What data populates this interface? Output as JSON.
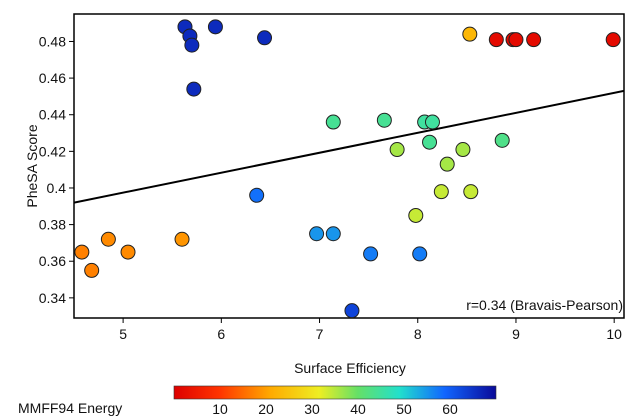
{
  "chart_data": {
    "type": "scatter",
    "xlabel": "Surface Efficiency",
    "ylabel": "PheSA Score",
    "xlim": [
      4.5,
      10.1
    ],
    "ylim": [
      0.329,
      0.495
    ],
    "xticks": [
      "5",
      "6",
      "7",
      "8",
      "9",
      "10"
    ],
    "yticks": [
      "0.34",
      "0.36",
      "0.38",
      "0.4",
      "0.42",
      "0.44",
      "0.46",
      "0.48"
    ],
    "annotation": "r=0.34 (Bravais-Pearson)",
    "trendline": {
      "x": [
        4.5,
        10.1
      ],
      "y": [
        0.392,
        0.453
      ]
    },
    "grid": false,
    "colorbar": {
      "label": "MMFF94 Energy",
      "ticks": [
        "10",
        "20",
        "30",
        "40",
        "50",
        "60"
      ],
      "range": [
        0,
        70
      ],
      "colormap": "jet-reversed (red low, blue high)"
    },
    "points": [
      {
        "x": 4.58,
        "y": 0.365,
        "energy": 17
      },
      {
        "x": 4.68,
        "y": 0.355,
        "energy": 17
      },
      {
        "x": 4.85,
        "y": 0.372,
        "energy": 18
      },
      {
        "x": 5.05,
        "y": 0.365,
        "energy": 18
      },
      {
        "x": 5.6,
        "y": 0.372,
        "energy": 19
      },
      {
        "x": 5.63,
        "y": 0.488,
        "energy": 66
      },
      {
        "x": 5.68,
        "y": 0.483,
        "energy": 66
      },
      {
        "x": 5.7,
        "y": 0.478,
        "energy": 66
      },
      {
        "x": 5.72,
        "y": 0.454,
        "energy": 66
      },
      {
        "x": 5.94,
        "y": 0.488,
        "energy": 66
      },
      {
        "x": 6.44,
        "y": 0.482,
        "energy": 66
      },
      {
        "x": 6.36,
        "y": 0.396,
        "energy": 58
      },
      {
        "x": 6.97,
        "y": 0.375,
        "energy": 55
      },
      {
        "x": 7.14,
        "y": 0.375,
        "energy": 55
      },
      {
        "x": 7.14,
        "y": 0.436,
        "energy": 44
      },
      {
        "x": 7.33,
        "y": 0.333,
        "energy": 63
      },
      {
        "x": 7.52,
        "y": 0.364,
        "energy": 57
      },
      {
        "x": 7.66,
        "y": 0.437,
        "energy": 44
      },
      {
        "x": 7.79,
        "y": 0.421,
        "energy": 36
      },
      {
        "x": 7.98,
        "y": 0.385,
        "energy": 34
      },
      {
        "x": 8.02,
        "y": 0.364,
        "energy": 57
      },
      {
        "x": 8.07,
        "y": 0.436,
        "energy": 45
      },
      {
        "x": 8.12,
        "y": 0.425,
        "energy": 44
      },
      {
        "x": 8.15,
        "y": 0.436,
        "energy": 45
      },
      {
        "x": 8.24,
        "y": 0.398,
        "energy": 34
      },
      {
        "x": 8.3,
        "y": 0.413,
        "energy": 36
      },
      {
        "x": 8.46,
        "y": 0.421,
        "energy": 36
      },
      {
        "x": 8.54,
        "y": 0.398,
        "energy": 34
      },
      {
        "x": 8.53,
        "y": 0.484,
        "energy": 23
      },
      {
        "x": 8.86,
        "y": 0.426,
        "energy": 43
      },
      {
        "x": 8.8,
        "y": 0.481,
        "energy": 2
      },
      {
        "x": 8.97,
        "y": 0.481,
        "energy": 2
      },
      {
        "x": 9.0,
        "y": 0.481,
        "energy": 2
      },
      {
        "x": 9.18,
        "y": 0.481,
        "energy": 2
      },
      {
        "x": 9.99,
        "y": 0.481,
        "energy": 2
      }
    ]
  }
}
